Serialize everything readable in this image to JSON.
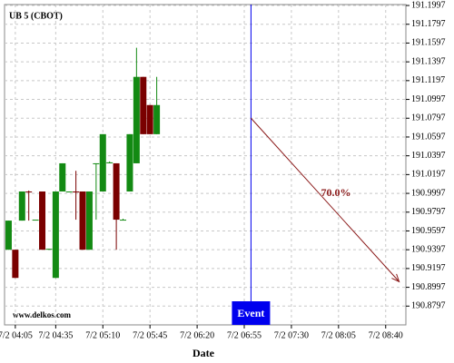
{
  "chart_data": {
    "type": "candlestick",
    "title": "UB 5 (CBOT)",
    "xlabel": "Date",
    "watermark": "www.delkos.com",
    "x": [
      "7/2 04:00",
      "7/2 04:05",
      "7/2 04:10",
      "7/2 04:15",
      "7/2 04:20",
      "7/2 04:25",
      "7/2 04:30",
      "7/2 04:35",
      "7/2 04:40",
      "7/2 04:45",
      "7/2 04:50",
      "7/2 04:55",
      "7/2 05:00",
      "7/2 05:05",
      "7/2 05:10",
      "7/2 05:15",
      "7/2 05:20",
      "7/2 05:25",
      "7/2 05:30",
      "7/2 05:35",
      "7/2 05:40",
      "7/2 05:45",
      "7/2 05:50"
    ],
    "open": [
      190.9397,
      190.9397,
      190.9707,
      191.0017,
      190.9717,
      191.0017,
      190.9397,
      190.9097,
      191.0017,
      191.0017,
      191.0017,
      191.0017,
      190.9397,
      191.0317,
      191.0017,
      191.0317,
      191.0317,
      190.9717,
      191.0017,
      191.0317,
      191.1237,
      191.0937,
      191.0627
    ],
    "high": [
      190.9707,
      190.9397,
      191.0017,
      191.0027,
      190.9717,
      191.0017,
      190.9407,
      191.0017,
      191.0317,
      191.0017,
      191.0237,
      191.0017,
      191.0017,
      191.0317,
      191.0627,
      191.0337,
      191.0317,
      190.9727,
      191.0627,
      191.1547,
      191.1237,
      191.0937,
      191.1237
    ],
    "low": [
      190.9397,
      190.9097,
      190.9707,
      190.9707,
      190.9717,
      190.9397,
      190.9397,
      190.9097,
      191.0017,
      191.0017,
      190.9717,
      190.9397,
      190.9397,
      190.9717,
      191.0017,
      191.0317,
      190.9397,
      190.9717,
      191.0017,
      191.0317,
      191.0627,
      191.0627,
      191.0627
    ],
    "close": [
      190.9707,
      190.9097,
      191.0017,
      191.0007,
      190.9717,
      190.9397,
      190.9407,
      191.0017,
      191.0317,
      191.0017,
      191.0007,
      190.9397,
      191.0017,
      191.0317,
      191.0627,
      191.0327,
      190.9717,
      190.9717,
      191.0627,
      191.1237,
      191.0627,
      191.0627,
      191.0937
    ],
    "up_color": "#138a13",
    "down_color": "#7a0000",
    "xlim": [
      "7/2 03:57",
      "7/2 08:55"
    ],
    "xticks": [
      "7/2 04:05",
      "7/2 04:35",
      "7/2 05:10",
      "7/2 05:45",
      "7/2 06:20",
      "7/2 06:55",
      "7/2 07:30",
      "7/2 08:05",
      "7/2 08:40"
    ],
    "ylim": [
      190.8597,
      191.2007
    ],
    "yticks": [
      191.1997,
      191.1797,
      191.1597,
      191.1397,
      191.1197,
      191.0997,
      191.0797,
      191.0597,
      191.0397,
      191.0197,
      190.9997,
      190.9797,
      190.9597,
      190.9397,
      190.9197,
      190.8997,
      190.8797
    ],
    "grid": true,
    "event": {
      "x": "7/2 07:00",
      "label": "Event",
      "color": "#0000ee"
    },
    "projection": {
      "from": {
        "x": "7/2 07:00",
        "y": 191.0797
      },
      "to": {
        "x": "7/2 08:50",
        "y": 190.9057
      },
      "label": "70.0%",
      "color": "#8b1a1a"
    }
  }
}
